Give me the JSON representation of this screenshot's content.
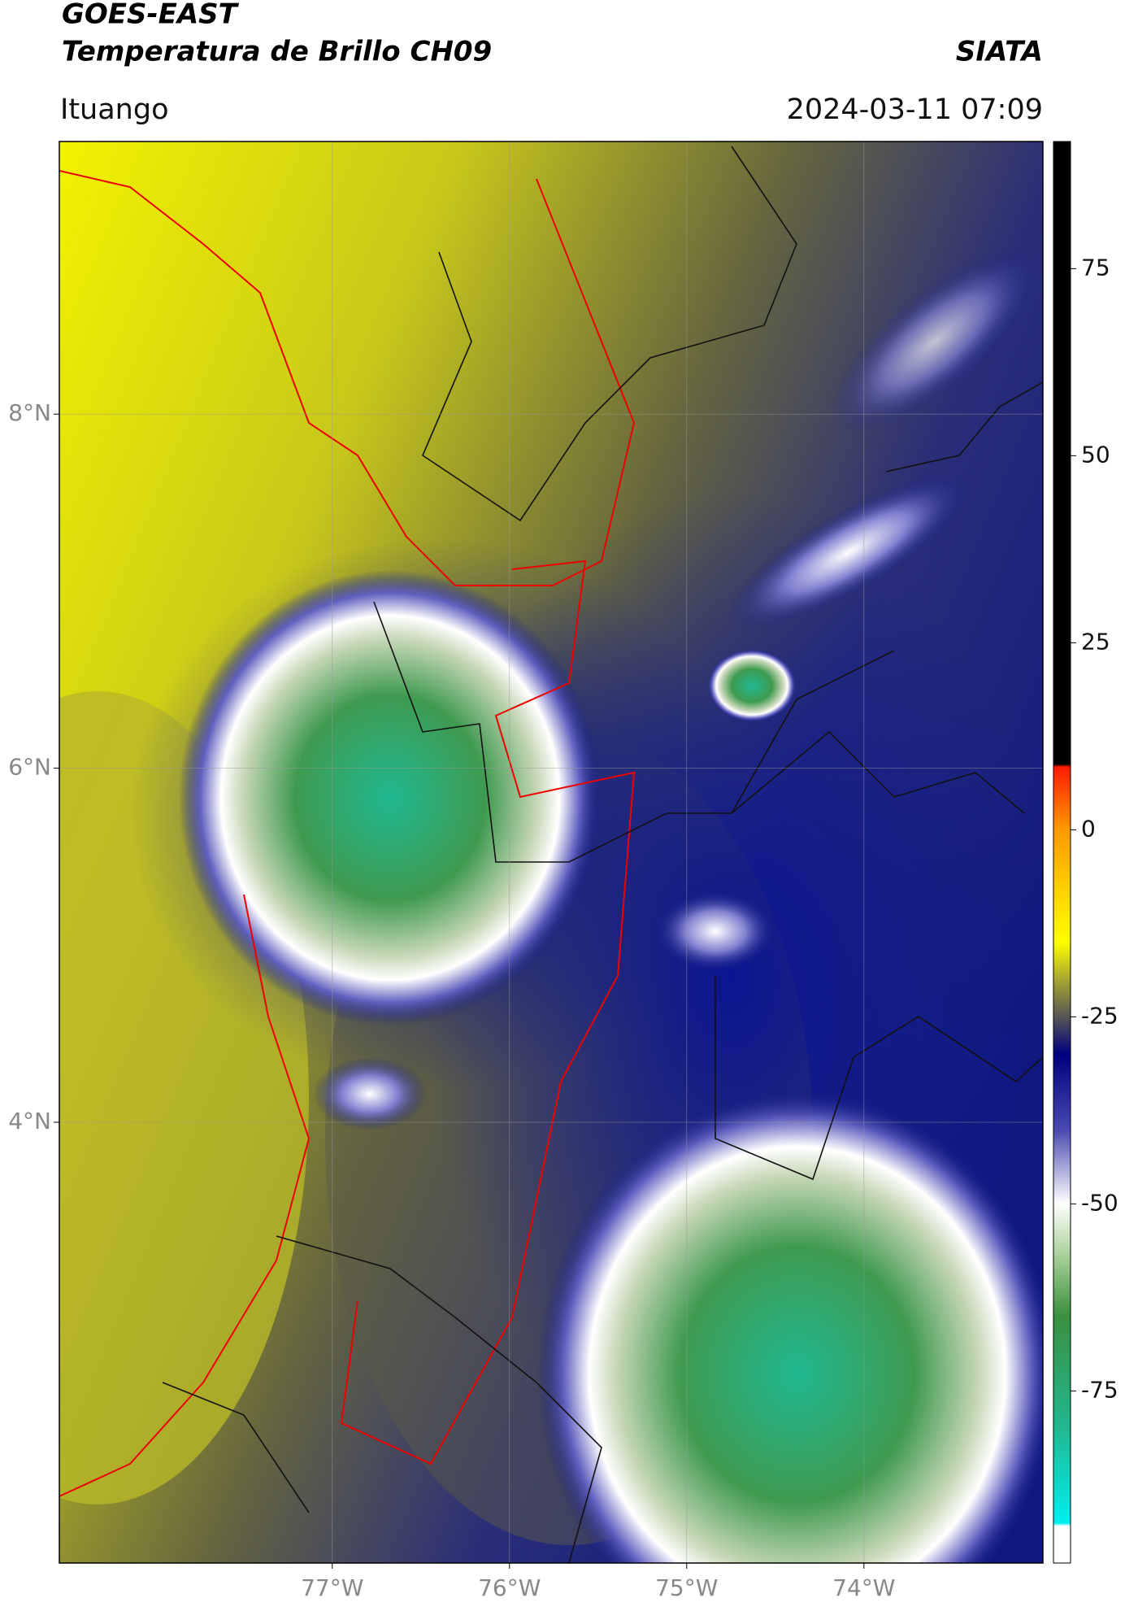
{
  "header": {
    "source": "GOES-EAST",
    "product": "Temperatura de Brillo CH09",
    "agency": "SIATA",
    "location": "Ituango",
    "datetime": "2024-03-11 07:09"
  },
  "map": {
    "xlim": [
      -78.54,
      -72.99
    ],
    "ylim": [
      1.51,
      9.54
    ],
    "grid": true,
    "xticks": [
      {
        "value": -77,
        "label": "77°W"
      },
      {
        "value": -76,
        "label": "76°W"
      },
      {
        "value": -75,
        "label": "75°W"
      },
      {
        "value": -74,
        "label": "74°W"
      }
    ],
    "yticks": [
      {
        "value": 8,
        "label": "8°N"
      },
      {
        "value": 6,
        "label": "6°N"
      },
      {
        "value": 4,
        "label": "4°N"
      }
    ]
  },
  "colorbar": {
    "clim": [
      -98,
      92
    ],
    "ticks": [
      75,
      50,
      25,
      0,
      -25,
      -50,
      -75
    ]
  }
}
